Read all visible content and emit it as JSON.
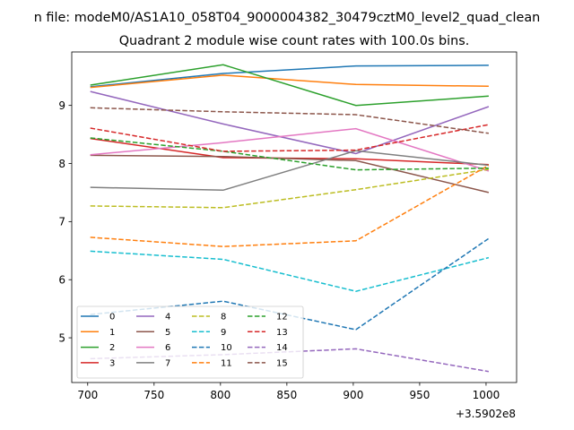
{
  "chart_data": {
    "type": "line",
    "suptitle": "n file: modeM0/AS1A10_058T04_9000004382_30479cztM0_level2_quad_clean",
    "title": "Quadrant 2 module wise count rates with 100.0s bins.",
    "xlabel": "",
    "ylabel": "",
    "x_offset_label": "+3.5902e8",
    "xlim": [
      688,
      1023
    ],
    "ylim": [
      4.23,
      9.92
    ],
    "x_ticks": [
      700,
      750,
      800,
      850,
      900,
      950,
      1000
    ],
    "y_ticks": [
      5,
      6,
      7,
      8,
      9
    ],
    "grid": false,
    "legend_position": "lower-left",
    "legend_columns": 4,
    "x": [
      702,
      802,
      902,
      1002
    ],
    "series": [
      {
        "name": "0",
        "color": "#1f77b4",
        "dash": "solid",
        "values": [
          9.32,
          9.55,
          9.68,
          9.69
        ]
      },
      {
        "name": "1",
        "color": "#ff7f0e",
        "dash": "solid",
        "values": [
          9.31,
          9.52,
          9.36,
          9.33
        ]
      },
      {
        "name": "2",
        "color": "#2ca02c",
        "dash": "solid",
        "values": [
          9.35,
          9.7,
          9.0,
          9.16
        ]
      },
      {
        "name": "3",
        "color": "#d62728",
        "dash": "solid",
        "values": [
          8.43,
          8.1,
          8.08,
          7.98
        ]
      },
      {
        "name": "4",
        "color": "#9467bd",
        "dash": "solid",
        "values": [
          9.24,
          8.68,
          8.17,
          8.98
        ]
      },
      {
        "name": "5",
        "color": "#8c564b",
        "dash": "solid",
        "values": [
          8.14,
          8.12,
          8.05,
          7.5
        ]
      },
      {
        "name": "6",
        "color": "#e377c2",
        "dash": "solid",
        "values": [
          8.15,
          8.36,
          8.6,
          7.87
        ]
      },
      {
        "name": "7",
        "color": "#7f7f7f",
        "dash": "solid",
        "values": [
          7.59,
          7.54,
          8.22,
          7.97
        ]
      },
      {
        "name": "8",
        "color": "#bcbd22",
        "dash": "dashed",
        "values": [
          7.27,
          7.24,
          7.55,
          7.9
        ]
      },
      {
        "name": "9",
        "color": "#17becf",
        "dash": "dashed",
        "values": [
          6.49,
          6.35,
          5.8,
          6.38
        ]
      },
      {
        "name": "10",
        "color": "#1f77b4",
        "dash": "dashed",
        "values": [
          5.4,
          5.63,
          5.14,
          6.71
        ]
      },
      {
        "name": "11",
        "color": "#ff7f0e",
        "dash": "dashed",
        "values": [
          6.73,
          6.57,
          6.67,
          7.97
        ]
      },
      {
        "name": "12",
        "color": "#2ca02c",
        "dash": "dashed",
        "values": [
          8.44,
          8.21,
          7.89,
          7.92
        ]
      },
      {
        "name": "13",
        "color": "#d62728",
        "dash": "dashed",
        "values": [
          8.61,
          8.21,
          8.23,
          8.67
        ]
      },
      {
        "name": "14",
        "color": "#9467bd",
        "dash": "dashed",
        "values": [
          4.64,
          4.71,
          4.81,
          4.42
        ]
      },
      {
        "name": "15",
        "color": "#8c564b",
        "dash": "dashed",
        "values": [
          8.96,
          8.89,
          8.84,
          8.52
        ]
      }
    ]
  }
}
